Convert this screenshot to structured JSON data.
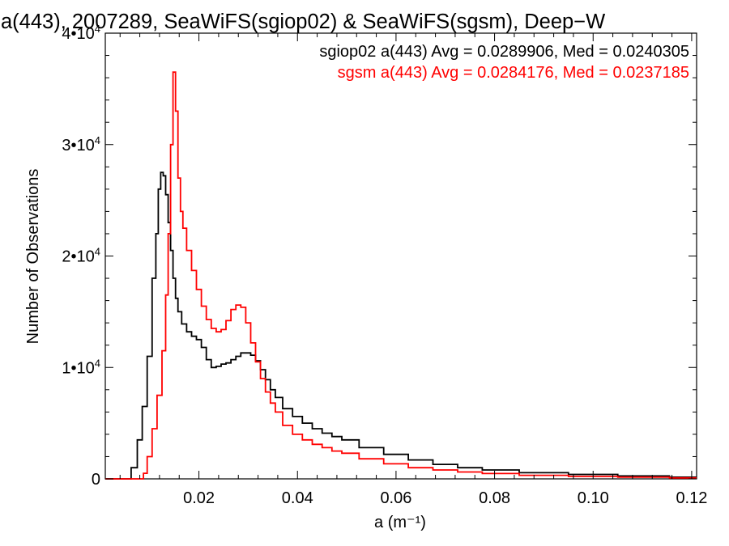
{
  "chart_data": {
    "type": "line",
    "title": "a(443), 2007289, SeaWiFS(sgiop02) & SeaWiFS(sgsm), Deep−W",
    "xlabel": "a (m⁻¹)",
    "ylabel": "Number of Observations",
    "xlim": [
      0.001,
      0.121
    ],
    "ylim": [
      0,
      40000
    ],
    "grid": false,
    "legend_position": "top-right",
    "x_ticks": [
      {
        "value": 0.02,
        "label": "0.02"
      },
      {
        "value": 0.04,
        "label": "0.04"
      },
      {
        "value": 0.06,
        "label": "0.06"
      },
      {
        "value": 0.08,
        "label": "0.08"
      },
      {
        "value": 0.1,
        "label": "0.10"
      },
      {
        "value": 0.12,
        "label": "0.12"
      }
    ],
    "y_ticks": [
      {
        "value": 0,
        "label": "0",
        "exp": ""
      },
      {
        "value": 10000,
        "label": "1•10",
        "exp": "4"
      },
      {
        "value": 20000,
        "label": "2•10",
        "exp": "4"
      },
      {
        "value": 30000,
        "label": "3•10",
        "exp": "4"
      },
      {
        "value": 40000,
        "label": "4•10",
        "exp": "4"
      }
    ],
    "annotations": [
      "sgiop02 a(443) Avg = 0.0289906, Med = 0.0240305",
      "sgsm a(443) Avg = 0.0284176, Med = 0.0237185"
    ],
    "series": [
      {
        "color": "#000000",
        "x": [
          0.001,
          0.0055,
          0.007,
          0.008,
          0.009,
          0.01,
          0.011,
          0.0115,
          0.012,
          0.0125,
          0.013,
          0.0135,
          0.014,
          0.0145,
          0.015,
          0.0155,
          0.016,
          0.017,
          0.018,
          0.019,
          0.02,
          0.021,
          0.022,
          0.023,
          0.024,
          0.025,
          0.026,
          0.027,
          0.028,
          0.029,
          0.03,
          0.031,
          0.032,
          0.033,
          0.034,
          0.035,
          0.036,
          0.038,
          0.04,
          0.042,
          0.044,
          0.046,
          0.048,
          0.05,
          0.055,
          0.06,
          0.065,
          0.07,
          0.075,
          0.08,
          0.09,
          0.1,
          0.11,
          0.121
        ],
        "y": [
          0,
          0,
          1000,
          3500,
          6500,
          11000,
          18000,
          22000,
          26000,
          27500,
          27200,
          25500,
          23000,
          20500,
          18000,
          16200,
          15000,
          13900,
          13200,
          12800,
          12500,
          11800,
          10700,
          10000,
          10100,
          10300,
          10400,
          10700,
          11000,
          11300,
          11300,
          11100,
          10600,
          9800,
          8900,
          8000,
          7300,
          6300,
          5600,
          5000,
          4500,
          4100,
          3800,
          3500,
          2800,
          2200,
          1700,
          1300,
          1000,
          800,
          550,
          400,
          260,
          150
        ]
      },
      {
        "color": "#ff0000",
        "x": [
          0.001,
          0.0085,
          0.009,
          0.01,
          0.011,
          0.012,
          0.013,
          0.0135,
          0.014,
          0.0145,
          0.015,
          0.0155,
          0.016,
          0.0165,
          0.017,
          0.018,
          0.019,
          0.02,
          0.021,
          0.022,
          0.023,
          0.024,
          0.025,
          0.026,
          0.027,
          0.028,
          0.029,
          0.03,
          0.031,
          0.032,
          0.033,
          0.034,
          0.035,
          0.036,
          0.038,
          0.04,
          0.042,
          0.044,
          0.046,
          0.048,
          0.05,
          0.055,
          0.06,
          0.065,
          0.07,
          0.075,
          0.08,
          0.09,
          0.1,
          0.11,
          0.121
        ],
        "y": [
          0,
          0,
          500,
          2000,
          4500,
          7500,
          11500,
          16500,
          22000,
          30000,
          36500,
          33000,
          27000,
          24000,
          22500,
          20500,
          18700,
          17000,
          15500,
          14300,
          13500,
          13200,
          13400,
          14200,
          15200,
          15600,
          15400,
          14000,
          12200,
          10500,
          9000,
          7800,
          6800,
          6000,
          4800,
          4000,
          3500,
          3100,
          2800,
          2500,
          2300,
          1800,
          1350,
          1000,
          800,
          620,
          480,
          320,
          220,
          150,
          90
        ]
      }
    ]
  }
}
